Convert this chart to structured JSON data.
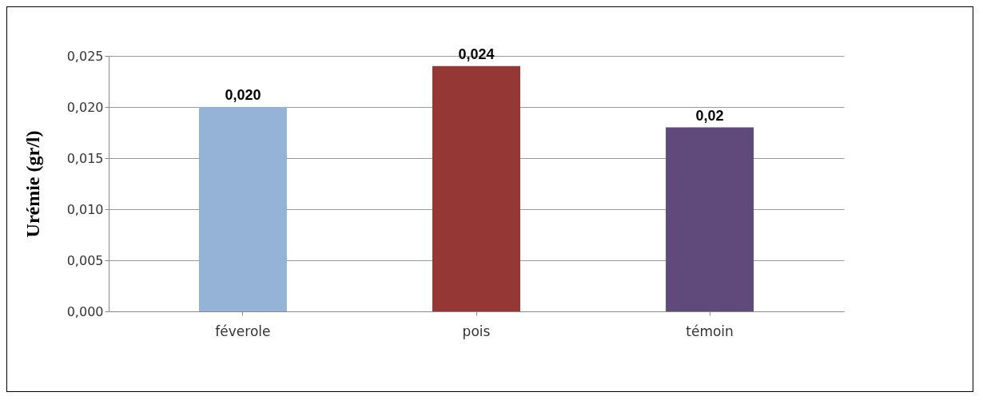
{
  "chart_data": {
    "type": "bar",
    "ylabel": "Urémie (gr/l)",
    "categories": [
      "féverole",
      "pois",
      "témoin"
    ],
    "values": [
      0.02,
      0.024,
      0.018
    ],
    "colors": [
      "#95b3d7",
      "#953735",
      "#604a7b"
    ],
    "value_labels": [
      "0,020",
      "0,024",
      "0,02"
    ],
    "ylim": [
      0,
      0.025
    ],
    "yticks": [
      {
        "value": 0,
        "label": "0,000"
      },
      {
        "value": 0.005,
        "label": "0,005"
      },
      {
        "value": 0.01,
        "label": "0,010"
      },
      {
        "value": 0.015,
        "label": "0,015"
      },
      {
        "value": 0.02,
        "label": "0,020"
      },
      {
        "value": 0.025,
        "label": "0,025"
      }
    ],
    "grid": "y"
  }
}
